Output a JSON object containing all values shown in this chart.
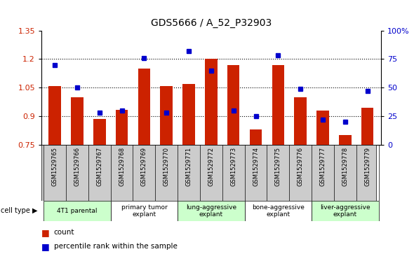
{
  "title": "GDS5666 / A_52_P32903",
  "samples": [
    "GSM1529765",
    "GSM1529766",
    "GSM1529767",
    "GSM1529768",
    "GSM1529769",
    "GSM1529770",
    "GSM1529771",
    "GSM1529772",
    "GSM1529773",
    "GSM1529774",
    "GSM1529775",
    "GSM1529776",
    "GSM1529777",
    "GSM1529778",
    "GSM1529779"
  ],
  "counts": [
    1.06,
    1.0,
    0.885,
    0.935,
    1.15,
    1.06,
    1.07,
    1.2,
    1.17,
    0.83,
    1.17,
    1.0,
    0.93,
    0.8,
    0.945
  ],
  "percentiles": [
    70,
    50,
    28,
    30,
    76,
    28,
    82,
    65,
    30,
    25,
    78,
    49,
    22,
    20,
    47
  ],
  "ylim_left": [
    0.75,
    1.35
  ],
  "ylim_right": [
    0,
    100
  ],
  "yticks_left": [
    0.75,
    0.9,
    1.05,
    1.2,
    1.35
  ],
  "yticks_right": [
    0,
    25,
    50,
    75,
    100
  ],
  "bar_color": "#cc2200",
  "dot_color": "#0000cc",
  "cell_types": [
    {
      "label": "4T1 parental",
      "start": 0,
      "end": 2,
      "color": "#ccffcc"
    },
    {
      "label": "primary tumor\nexplant",
      "start": 3,
      "end": 5,
      "color": "#ffffff"
    },
    {
      "label": "lung-aggressive\nexplant",
      "start": 6,
      "end": 8,
      "color": "#ccffcc"
    },
    {
      "label": "bone-aggressive\nexplant",
      "start": 9,
      "end": 11,
      "color": "#ffffff"
    },
    {
      "label": "liver-aggressive\nexplant",
      "start": 12,
      "end": 14,
      "color": "#ccffcc"
    }
  ],
  "cell_type_row_color": "#cccccc",
  "legend_count_color": "#cc2200",
  "legend_dot_color": "#0000cc",
  "background_color": "#ffffff",
  "plot_bg_color": "#ffffff"
}
